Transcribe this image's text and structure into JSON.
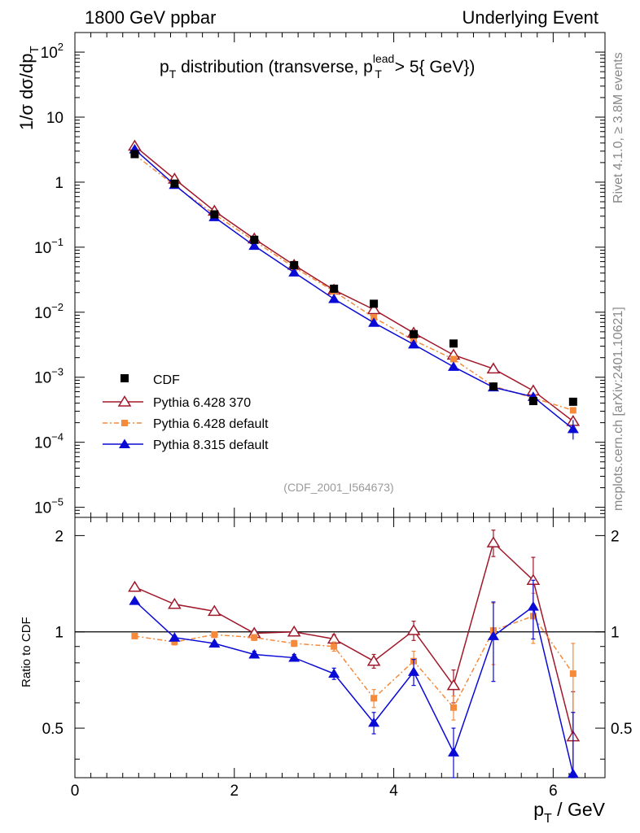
{
  "header": {
    "left": "1800 GeV ppbar",
    "right": "Underlying Event"
  },
  "side_labels": {
    "rivet": "Rivet 4.1.0, ≥ 3.8M events",
    "mcplots": "mcplots.cern.ch [arXiv:2401.10621]"
  },
  "colors": {
    "cdf": "#000000",
    "p6_370": "#a0182a",
    "p6_default": "#f58a3c",
    "p8": "#0a0ad6",
    "ref_line": "#000000"
  },
  "chart_data": [
    {
      "type": "line",
      "yscale": "log",
      "title": {
        "prefix": "p",
        "prefix_sub": "T",
        "mid": " distribution (transverse, p",
        "sup": "lead",
        "sub": "T",
        "suffix": " > 5{ GeV})"
      },
      "ylabel": {
        "pre": "1/σ  dσ/dp",
        "sub": "T"
      },
      "ylim": [
        7e-06,
        200
      ],
      "xlim": [
        0,
        6.65
      ],
      "y_ticks": [
        {
          "value": 100,
          "base": "10",
          "exp": "2"
        },
        {
          "value": 10,
          "base": "10",
          "exp": ""
        },
        {
          "value": 1,
          "base": "1",
          "exp": ""
        },
        {
          "value": 0.1,
          "base": "10",
          "exp": "−1"
        },
        {
          "value": 0.01,
          "base": "10",
          "exp": "−2"
        },
        {
          "value": 0.001,
          "base": "10",
          "exp": "−3"
        },
        {
          "value": 0.0001,
          "base": "10",
          "exp": "−4"
        },
        {
          "value": 1e-05,
          "base": "10",
          "exp": "−5"
        }
      ],
      "watermark": "(CDF_2001_I564673)",
      "legend_position": "lower-left",
      "x": [
        0.75,
        1.25,
        1.75,
        2.25,
        2.75,
        3.25,
        3.75,
        4.25,
        4.75,
        5.25,
        5.75,
        6.25
      ],
      "series": [
        {
          "name": "CDF",
          "key": "cdf",
          "marker": "square",
          "values": [
            2.7,
            0.95,
            0.32,
            0.13,
            0.053,
            0.023,
            0.0135,
            0.0046,
            0.0033,
            0.00072,
            0.00043,
            0.00042
          ]
        },
        {
          "name": "Pythia 6.428 370",
          "key": "p6_370",
          "marker": "open-triangle",
          "values": [
            3.6,
            1.12,
            0.36,
            0.135,
            0.053,
            0.022,
            0.011,
            0.0048,
            0.0022,
            0.00135,
            0.00062,
            0.00021
          ]
        },
        {
          "name": "Pythia 6.428 default",
          "key": "p6_default",
          "marker": "square-small",
          "dash": true,
          "values": [
            2.65,
            0.89,
            0.32,
            0.125,
            0.049,
            0.021,
            0.0083,
            0.0037,
            0.0019,
            0.00073,
            0.00048,
            0.00031
          ]
        },
        {
          "name": "Pythia 8.315 default",
          "key": "p8",
          "marker": "filled-triangle",
          "values": [
            3.2,
            0.91,
            0.29,
            0.105,
            0.041,
            0.016,
            0.0069,
            0.0032,
            0.00145,
            0.0007,
            0.0005,
            0.00016
          ],
          "err_x": [
            6.25
          ],
          "err_lo": [
            0.00011
          ],
          "err_hi": [
            0.00022
          ]
        }
      ]
    },
    {
      "type": "line",
      "ylabel": "Ratio to CDF",
      "xlabel": {
        "main": "p",
        "sub": "T",
        "suffix": " / GeV"
      },
      "xlim": [
        0,
        6.65
      ],
      "ylim": [
        0.35,
        2.28
      ],
      "y_ticks": [
        "0.5",
        "1",
        "2"
      ],
      "y_tick_values": [
        0.5,
        1,
        2
      ],
      "x_ticks": [
        "0",
        "2",
        "4",
        "6"
      ],
      "x_tick_values": [
        0,
        2,
        4,
        6
      ],
      "reference": 1,
      "x": [
        0.75,
        1.25,
        1.75,
        2.25,
        2.75,
        3.25,
        3.75,
        4.25,
        4.75,
        5.25,
        5.75,
        6.25
      ],
      "series": [
        {
          "name": "Pythia 6.428 370",
          "key": "p6_370",
          "marker": "open-triangle",
          "values": [
            1.38,
            1.22,
            1.16,
            0.99,
            1.0,
            0.95,
            0.81,
            1.01,
            0.68,
            1.9,
            1.45,
            0.47
          ],
          "err": [
            0.02,
            0.02,
            0.02,
            0.02,
            0.02,
            0.03,
            0.04,
            0.07,
            0.08,
            0.18,
            0.26,
            0.18
          ]
        },
        {
          "name": "Pythia 6.428 default",
          "key": "p6_default",
          "marker": "square-small",
          "dash": true,
          "values": [
            0.97,
            0.93,
            0.98,
            0.96,
            0.92,
            0.9,
            0.62,
            0.81,
            0.58,
            1.01,
            1.12,
            0.74
          ],
          "err": [
            0.01,
            0.02,
            0.02,
            0.02,
            0.02,
            0.03,
            0.04,
            0.06,
            0.05,
            0.22,
            0.2,
            0.18
          ]
        },
        {
          "name": "Pythia 8.315 default",
          "key": "p8",
          "marker": "filled-triangle",
          "values": [
            1.25,
            0.96,
            0.92,
            0.85,
            0.83,
            0.74,
            0.52,
            0.75,
            0.42,
            0.97,
            1.2,
            0.36
          ],
          "err": [
            0.01,
            0.01,
            0.01,
            0.02,
            0.02,
            0.03,
            0.04,
            0.07,
            0.08,
            0.27,
            0.25,
            0.2
          ]
        }
      ]
    }
  ]
}
